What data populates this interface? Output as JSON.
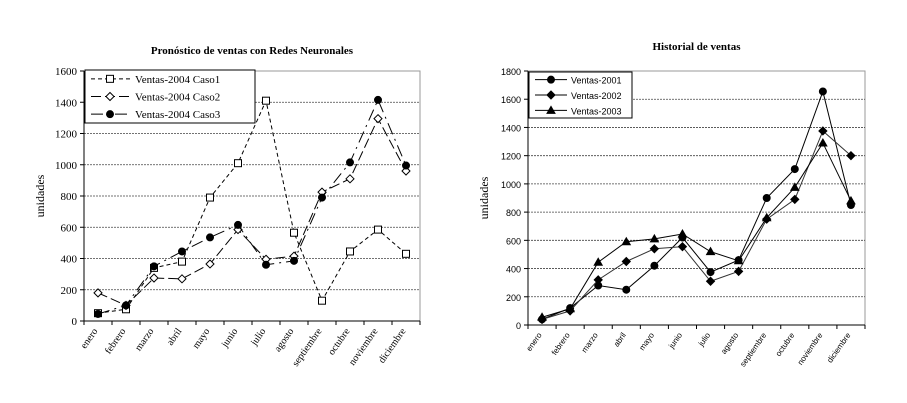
{
  "chart_data": [
    {
      "type": "line",
      "title": "Pronóstico de ventas con Redes Neuronales",
      "xlabel": "",
      "ylabel": "unidades",
      "ylim": [
        0,
        1600
      ],
      "yticks": [
        0,
        200,
        400,
        600,
        800,
        1000,
        1200,
        1400,
        1600
      ],
      "grid": true,
      "legend": "top-left",
      "categories": [
        "enero",
        "febrero",
        "marzo",
        "abril",
        "mayo",
        "junio",
        "julio",
        "agosto",
        "septiembre",
        "octubre",
        "noviembre",
        "diciembre"
      ],
      "series": [
        {
          "name": "Ventas-2004 Caso1",
          "marker": "square-open",
          "dash": "4,3",
          "values": [
            50,
            75,
            340,
            380,
            790,
            1010,
            1410,
            565,
            130,
            445,
            585,
            430
          ]
        },
        {
          "name": "Ventas-2004 Caso2",
          "marker": "diamond-open",
          "dash": "10,4",
          "values": [
            180,
            100,
            275,
            270,
            365,
            585,
            395,
            415,
            825,
            910,
            1295,
            960
          ]
        },
        {
          "name": "Ventas-2004 Caso3",
          "marker": "circle-filled",
          "dash": "12,5,2,5",
          "values": [
            45,
            100,
            350,
            445,
            535,
            615,
            360,
            385,
            790,
            1015,
            1415,
            995
          ]
        }
      ]
    },
    {
      "type": "line",
      "title": "Historial de ventas",
      "xlabel": "",
      "ylabel": "unidades",
      "ylim": [
        0,
        1800
      ],
      "yticks": [
        0,
        200,
        400,
        600,
        800,
        1000,
        1200,
        1400,
        1600,
        1800
      ],
      "grid": true,
      "legend": "top-left",
      "categories": [
        "enero",
        "febrero",
        "marzo",
        "abril",
        "mayo",
        "junio",
        "julio",
        "agosto",
        "septiembre",
        "octubre",
        "noviembre",
        "diciembre"
      ],
      "series": [
        {
          "name": "Ventas-2001",
          "marker": "circle-filled",
          "dash": "",
          "values": [
            40,
            120,
            280,
            250,
            420,
            620,
            375,
            460,
            900,
            1105,
            1655,
            850
          ]
        },
        {
          "name": "Ventas-2002",
          "marker": "diamond-filled",
          "dash": "",
          "values": [
            40,
            100,
            320,
            450,
            540,
            555,
            310,
            380,
            750,
            890,
            1375,
            1200
          ]
        },
        {
          "name": "Ventas-2003",
          "marker": "triangle-filled",
          "dash": "",
          "values": [
            55,
            115,
            445,
            590,
            610,
            645,
            520,
            455,
            760,
            975,
            1290,
            880
          ]
        }
      ]
    }
  ]
}
